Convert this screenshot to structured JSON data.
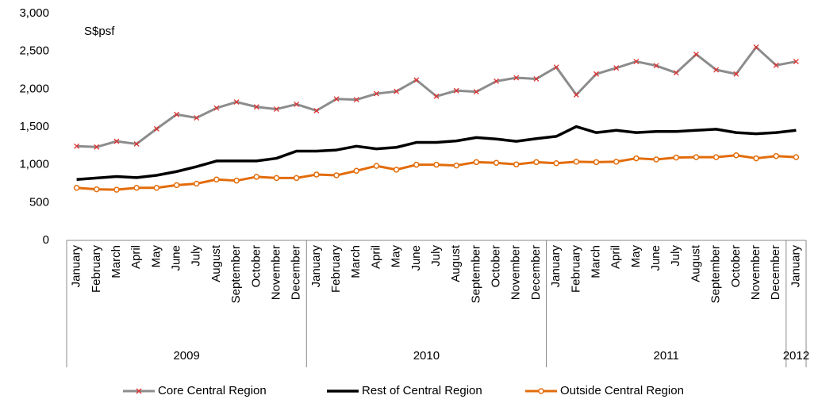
{
  "chart_data": {
    "type": "line",
    "annotation": "S$psf",
    "category_groups": [
      {
        "name": "2009",
        "categories": [
          "January",
          "February",
          "March",
          "April",
          "May",
          "June",
          "July",
          "August",
          "September",
          "October",
          "November",
          "December"
        ]
      },
      {
        "name": "2010",
        "categories": [
          "January",
          "February",
          "March",
          "April",
          "May",
          "June",
          "July",
          "August",
          "September",
          "October",
          "November",
          "December"
        ]
      },
      {
        "name": "2011",
        "categories": [
          "January",
          "February",
          "March",
          "April",
          "May",
          "June",
          "July",
          "August",
          "September",
          "October",
          "November",
          "December"
        ]
      },
      {
        "name": "2012",
        "categories": [
          "January"
        ]
      }
    ],
    "series": [
      {
        "name": "Core Central Region",
        "color": "#8c8c8c",
        "marker": "x",
        "marker_color": "#e03030",
        "values": [
          1245,
          1235,
          1310,
          1275,
          1475,
          1665,
          1620,
          1750,
          1830,
          1765,
          1735,
          1800,
          1715,
          1870,
          1860,
          1940,
          1970,
          2120,
          1905,
          1980,
          1965,
          2105,
          2150,
          2135,
          2290,
          1925,
          2200,
          2280,
          2365,
          2310,
          2215,
          2460,
          2255,
          2200,
          2555,
          2315,
          2365
        ]
      },
      {
        "name": "Rest of Central Region",
        "color": "#000000",
        "marker": "none",
        "values": [
          805,
          825,
          845,
          830,
          860,
          910,
          975,
          1050,
          1050,
          1050,
          1085,
          1180,
          1180,
          1195,
          1245,
          1210,
          1230,
          1295,
          1295,
          1315,
          1360,
          1340,
          1310,
          1345,
          1375,
          1505,
          1425,
          1455,
          1425,
          1440,
          1440,
          1455,
          1470,
          1425,
          1410,
          1425,
          1455
        ]
      },
      {
        "name": "Outside Central Region",
        "color": "#e36c0a",
        "marker": "circle",
        "marker_color": "#e36c0a",
        "values": [
          695,
          675,
          670,
          695,
          695,
          730,
          750,
          805,
          790,
          840,
          825,
          825,
          870,
          860,
          920,
          985,
          935,
          1000,
          1000,
          990,
          1035,
          1025,
          1005,
          1035,
          1020,
          1040,
          1035,
          1040,
          1085,
          1070,
          1095,
          1100,
          1100,
          1125,
          1085,
          1115,
          1100
        ]
      }
    ],
    "ylim": [
      0,
      3000
    ],
    "yticks": [
      0,
      500,
      {
        "value": 1000,
        "label": "1,000"
      },
      {
        "value": 1500,
        "label": "1,500"
      },
      {
        "value": 2000,
        "label": "2,000"
      },
      {
        "value": 2500,
        "label": "2,500"
      },
      {
        "value": 3000,
        "label": "3,000"
      }
    ],
    "grid": false,
    "legend": "bottom"
  }
}
